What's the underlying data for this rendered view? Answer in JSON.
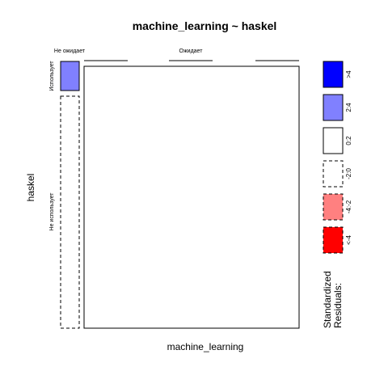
{
  "chart_data": {
    "type": "mosaic",
    "title": "machine_learning ~ haskel",
    "xlabel": "machine_learning",
    "ylabel": "haskel",
    "x_levels": [
      "Не ожидает",
      "Ожидает"
    ],
    "y_levels": [
      "Использует",
      "Не использует"
    ],
    "cells": [
      {
        "x": "Не ожидает",
        "y": "Использует",
        "residual_class": "2:4"
      },
      {
        "x": "Не ожидает",
        "y": "Не использует",
        "residual_class": "-2:0"
      },
      {
        "x": "Ожидает",
        "y": "Использует",
        "residual_class": "0:2"
      },
      {
        "x": "Ожидает",
        "y": "Не использует",
        "residual_class": "0:2"
      }
    ],
    "legend": {
      "title_line1": "Standardized",
      "title_line2": "Residuals:",
      "placement": "right",
      "items": [
        {
          "label": ">4",
          "color": "#0000ff",
          "dashed": false
        },
        {
          "label": "2:4",
          "color": "#8080ff",
          "dashed": false
        },
        {
          "label": "0:2",
          "color": "#ffffff",
          "dashed": false
        },
        {
          "label": "-2:0",
          "color": "#ffffff",
          "dashed": true
        },
        {
          "label": "-4:-2",
          "color": "#ff8080",
          "dashed": true
        },
        {
          "label": "<-4",
          "color": "#ff0000",
          "dashed": true
        }
      ]
    }
  }
}
